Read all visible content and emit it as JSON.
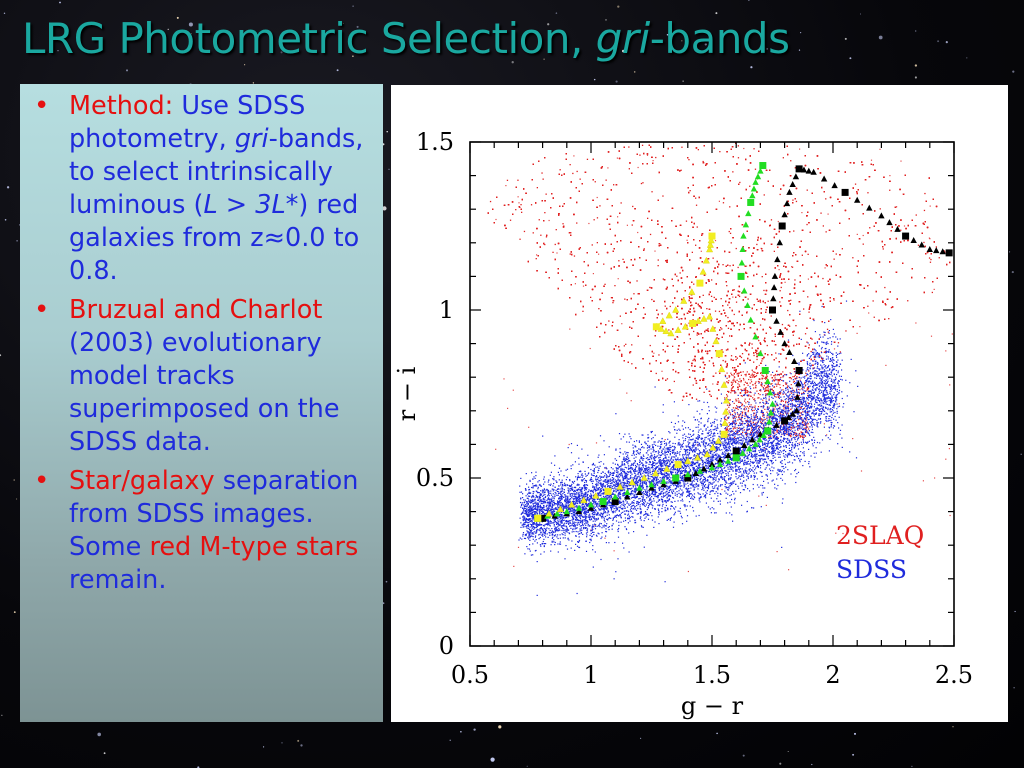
{
  "slide": {
    "title_main": "LRG Photometric Selection, ",
    "title_italic": "gri",
    "title_end": "-bands"
  },
  "bullets": {
    "b1": {
      "label": "Method:",
      "t1": " Use SDSS photometry, ",
      "it1": "gri",
      "t2": "-bands, to select intrinsically luminous (",
      "it2": "L > 3L*",
      "t3": ") red galaxies from z≈0.0 to 0.8."
    },
    "b2": {
      "label": "Bruzual and Charlot",
      "t1": " (2003) evolutionary model tracks superimposed on the SDSS data."
    },
    "b3": {
      "label": "Star/galaxy",
      "t1": " separation from SDSS images. Some ",
      "label2": "red M-type stars",
      "t2": " remain."
    }
  },
  "chart_data": {
    "type": "scatter",
    "title": "",
    "xlabel": "g − r",
    "ylabel": "r − i",
    "xlim": [
      0.5,
      2.5
    ],
    "ylim": [
      0,
      1.5
    ],
    "xticks": [
      "0.5",
      "1",
      "1.5",
      "2",
      "2.5"
    ],
    "yticks": [
      "0",
      "0.5",
      "1",
      "1.5"
    ],
    "legend_position": "bottom-right",
    "legend": [
      {
        "name": "2SLAQ",
        "color": "#e02020"
      },
      {
        "name": "SDSS",
        "color": "#1f2bdc"
      }
    ],
    "series": [
      {
        "name": "2SLAQ",
        "kind": "density",
        "color": "#e02020",
        "region": [
          [
            0.55,
            1.3
          ],
          [
            0.7,
            1.45
          ],
          [
            1.2,
            1.5
          ],
          [
            1.8,
            1.5
          ],
          [
            2.4,
            1.4
          ],
          [
            2.5,
            1.1
          ],
          [
            2.2,
            0.95
          ],
          [
            1.85,
            0.8
          ],
          [
            1.75,
            0.75
          ],
          [
            1.35,
            0.73
          ],
          [
            1.2,
            0.8
          ],
          [
            0.95,
            0.97
          ]
        ]
      },
      {
        "name": "SDSS",
        "kind": "density",
        "color": "#1f2bdc",
        "ridge": [
          [
            0.75,
            0.39
          ],
          [
            1.0,
            0.43
          ],
          [
            1.2,
            0.49
          ],
          [
            1.4,
            0.53
          ],
          [
            1.6,
            0.59
          ],
          [
            1.75,
            0.63
          ],
          [
            1.85,
            0.68
          ],
          [
            1.95,
            0.78
          ]
        ]
      },
      {
        "kind": "track",
        "color": "#000000",
        "points": [
          [
            0.8,
            0.38
          ],
          [
            0.95,
            0.4
          ],
          [
            1.1,
            0.43
          ],
          [
            1.25,
            0.47
          ],
          [
            1.4,
            0.5
          ],
          [
            1.5,
            0.54
          ],
          [
            1.6,
            0.58
          ],
          [
            1.7,
            0.63
          ],
          [
            1.8,
            0.67
          ],
          [
            1.85,
            0.7
          ],
          [
            1.86,
            0.82
          ],
          [
            1.8,
            0.9
          ],
          [
            1.75,
            1.0
          ],
          [
            1.76,
            1.1
          ],
          [
            1.79,
            1.25
          ],
          [
            1.82,
            1.35
          ],
          [
            1.86,
            1.42
          ],
          [
            1.92,
            1.41
          ],
          [
            2.05,
            1.35
          ],
          [
            2.2,
            1.28
          ],
          [
            2.3,
            1.22
          ],
          [
            2.4,
            1.18
          ],
          [
            2.48,
            1.17
          ]
        ]
      },
      {
        "kind": "track",
        "color": "#22dd22",
        "points": [
          [
            0.78,
            0.38
          ],
          [
            0.9,
            0.4
          ],
          [
            1.05,
            0.43
          ],
          [
            1.2,
            0.47
          ],
          [
            1.35,
            0.5
          ],
          [
            1.5,
            0.53
          ],
          [
            1.6,
            0.56
          ],
          [
            1.68,
            0.6
          ],
          [
            1.73,
            0.64
          ],
          [
            1.75,
            0.72
          ],
          [
            1.72,
            0.82
          ],
          [
            1.66,
            0.97
          ],
          [
            1.62,
            1.1
          ],
          [
            1.63,
            1.22
          ],
          [
            1.66,
            1.32
          ],
          [
            1.68,
            1.38
          ],
          [
            1.71,
            1.43
          ]
        ]
      },
      {
        "kind": "track",
        "color": "#f2ee22",
        "points": [
          [
            0.78,
            0.38
          ],
          [
            0.92,
            0.42
          ],
          [
            1.07,
            0.46
          ],
          [
            1.22,
            0.5
          ],
          [
            1.36,
            0.54
          ],
          [
            1.48,
            0.57
          ],
          [
            1.55,
            0.63
          ],
          [
            1.56,
            0.73
          ],
          [
            1.53,
            0.87
          ],
          [
            1.49,
            0.98
          ],
          [
            1.42,
            0.96
          ],
          [
            1.33,
            0.93
          ],
          [
            1.27,
            0.95
          ],
          [
            1.35,
            1.0
          ],
          [
            1.45,
            1.08
          ],
          [
            1.49,
            1.18
          ],
          [
            1.5,
            1.22
          ]
        ]
      }
    ]
  }
}
